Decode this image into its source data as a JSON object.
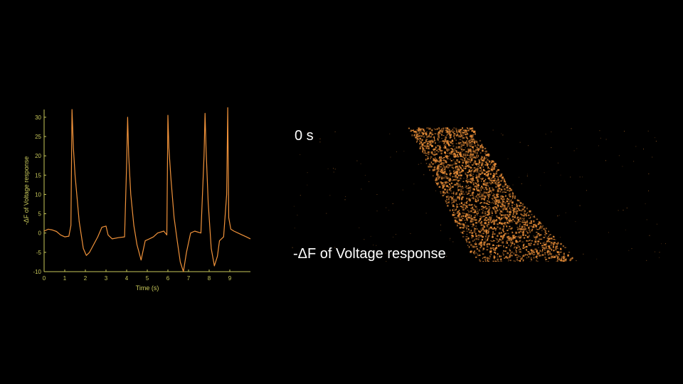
{
  "chart_data": {
    "type": "line",
    "xlabel": "Time (s)",
    "ylabel": "-ΔF of Voltage response",
    "xlim": [
      0,
      10
    ],
    "ylim": [
      -10,
      32
    ],
    "xticks": [
      0,
      1,
      2,
      3,
      4,
      5,
      6,
      7,
      8,
      9
    ],
    "yticks": [
      -10,
      -5,
      0,
      5,
      10,
      15,
      20,
      25,
      30
    ],
    "grid": false,
    "colors": {
      "axis": "#c8c85a",
      "line": "#f0923a",
      "background": "#000000"
    },
    "series": [
      {
        "x": [
          0,
          0.2,
          0.4,
          0.6,
          0.8,
          1.0,
          1.2,
          1.3,
          1.35,
          1.38,
          1.42,
          1.5,
          1.7,
          1.9,
          2.05,
          2.2,
          2.4,
          2.6,
          2.8,
          3.0,
          3.1,
          3.3,
          3.6,
          3.9,
          4.0,
          4.05,
          4.1,
          4.2,
          4.35,
          4.5,
          4.7,
          4.9,
          5.1,
          5.3,
          5.5,
          5.8,
          5.95,
          6.0,
          6.05,
          6.15,
          6.3,
          6.45,
          6.6,
          6.75,
          6.9,
          7.1,
          7.3,
          7.6,
          7.75,
          7.8,
          7.85,
          7.95,
          8.1,
          8.25,
          8.4,
          8.5,
          8.7,
          8.85,
          8.9,
          8.95,
          9.05,
          9.2,
          9.4,
          9.6,
          9.8,
          10.0
        ],
        "y": [
          0.5,
          1.0,
          0.8,
          0.4,
          -0.5,
          -1.0,
          -0.8,
          2.0,
          32.0,
          28.0,
          22.0,
          15.0,
          3.0,
          -4.0,
          -5.8,
          -5.0,
          -3.0,
          -1.0,
          1.5,
          1.8,
          -0.5,
          -1.5,
          -1.2,
          -1.0,
          18.0,
          30.0,
          20.0,
          10.0,
          2.0,
          -3.0,
          -7.0,
          -2.0,
          -1.5,
          -1.0,
          0.0,
          0.5,
          -0.5,
          30.5,
          22.0,
          14.0,
          4.0,
          -2.0,
          -7.5,
          -10.0,
          -5.0,
          0.0,
          0.5,
          0.0,
          20.0,
          31.0,
          22.0,
          8.0,
          -4.0,
          -8.5,
          -6.0,
          -2.0,
          -1.0,
          10.0,
          32.5,
          4.0,
          1.0,
          0.5,
          0.0,
          -0.5,
          -1.0,
          -1.5
        ]
      }
    ]
  },
  "kymograph": {
    "top_label": "0 s",
    "bottom_label": "-ΔF of Voltage response",
    "colors": {
      "signal": "#f0923a",
      "divider": "#bdbdbd"
    }
  }
}
